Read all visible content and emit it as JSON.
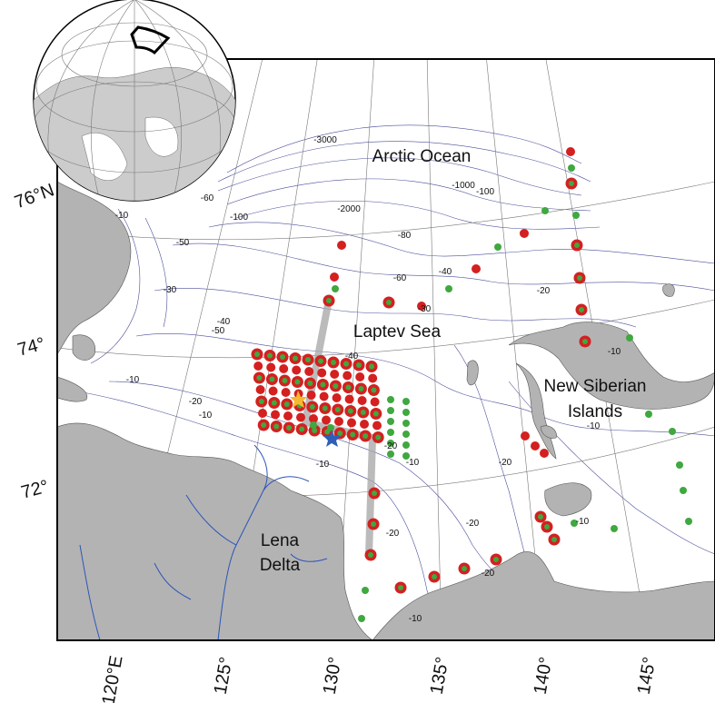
{
  "map": {
    "labels": {
      "arctic_ocean": "Arctic Ocean",
      "laptev_sea": "Laptev Sea",
      "new_siberian_islands": [
        "New Siberian",
        "Islands"
      ],
      "lena_delta": [
        "Lena",
        "Delta"
      ]
    },
    "latitude_labels": [
      "76°N",
      "74°",
      "72°"
    ],
    "longitude_labels": [
      "120°E",
      "125°",
      "130°",
      "135°",
      "140°",
      "145°"
    ],
    "contour_labels": [
      "-3000",
      "-2000",
      "-1000",
      "-100",
      "-100",
      "-80",
      "-60",
      "-60",
      "-50",
      "-50",
      "-40",
      "-40",
      "-40",
      "-30",
      "-30",
      "-20",
      "-20",
      "-20",
      "-20",
      "-20",
      "-20",
      "-20",
      "-10",
      "-10",
      "-10",
      "-10",
      "-10",
      "-10",
      "-10",
      "-10",
      "-10"
    ]
  }
}
